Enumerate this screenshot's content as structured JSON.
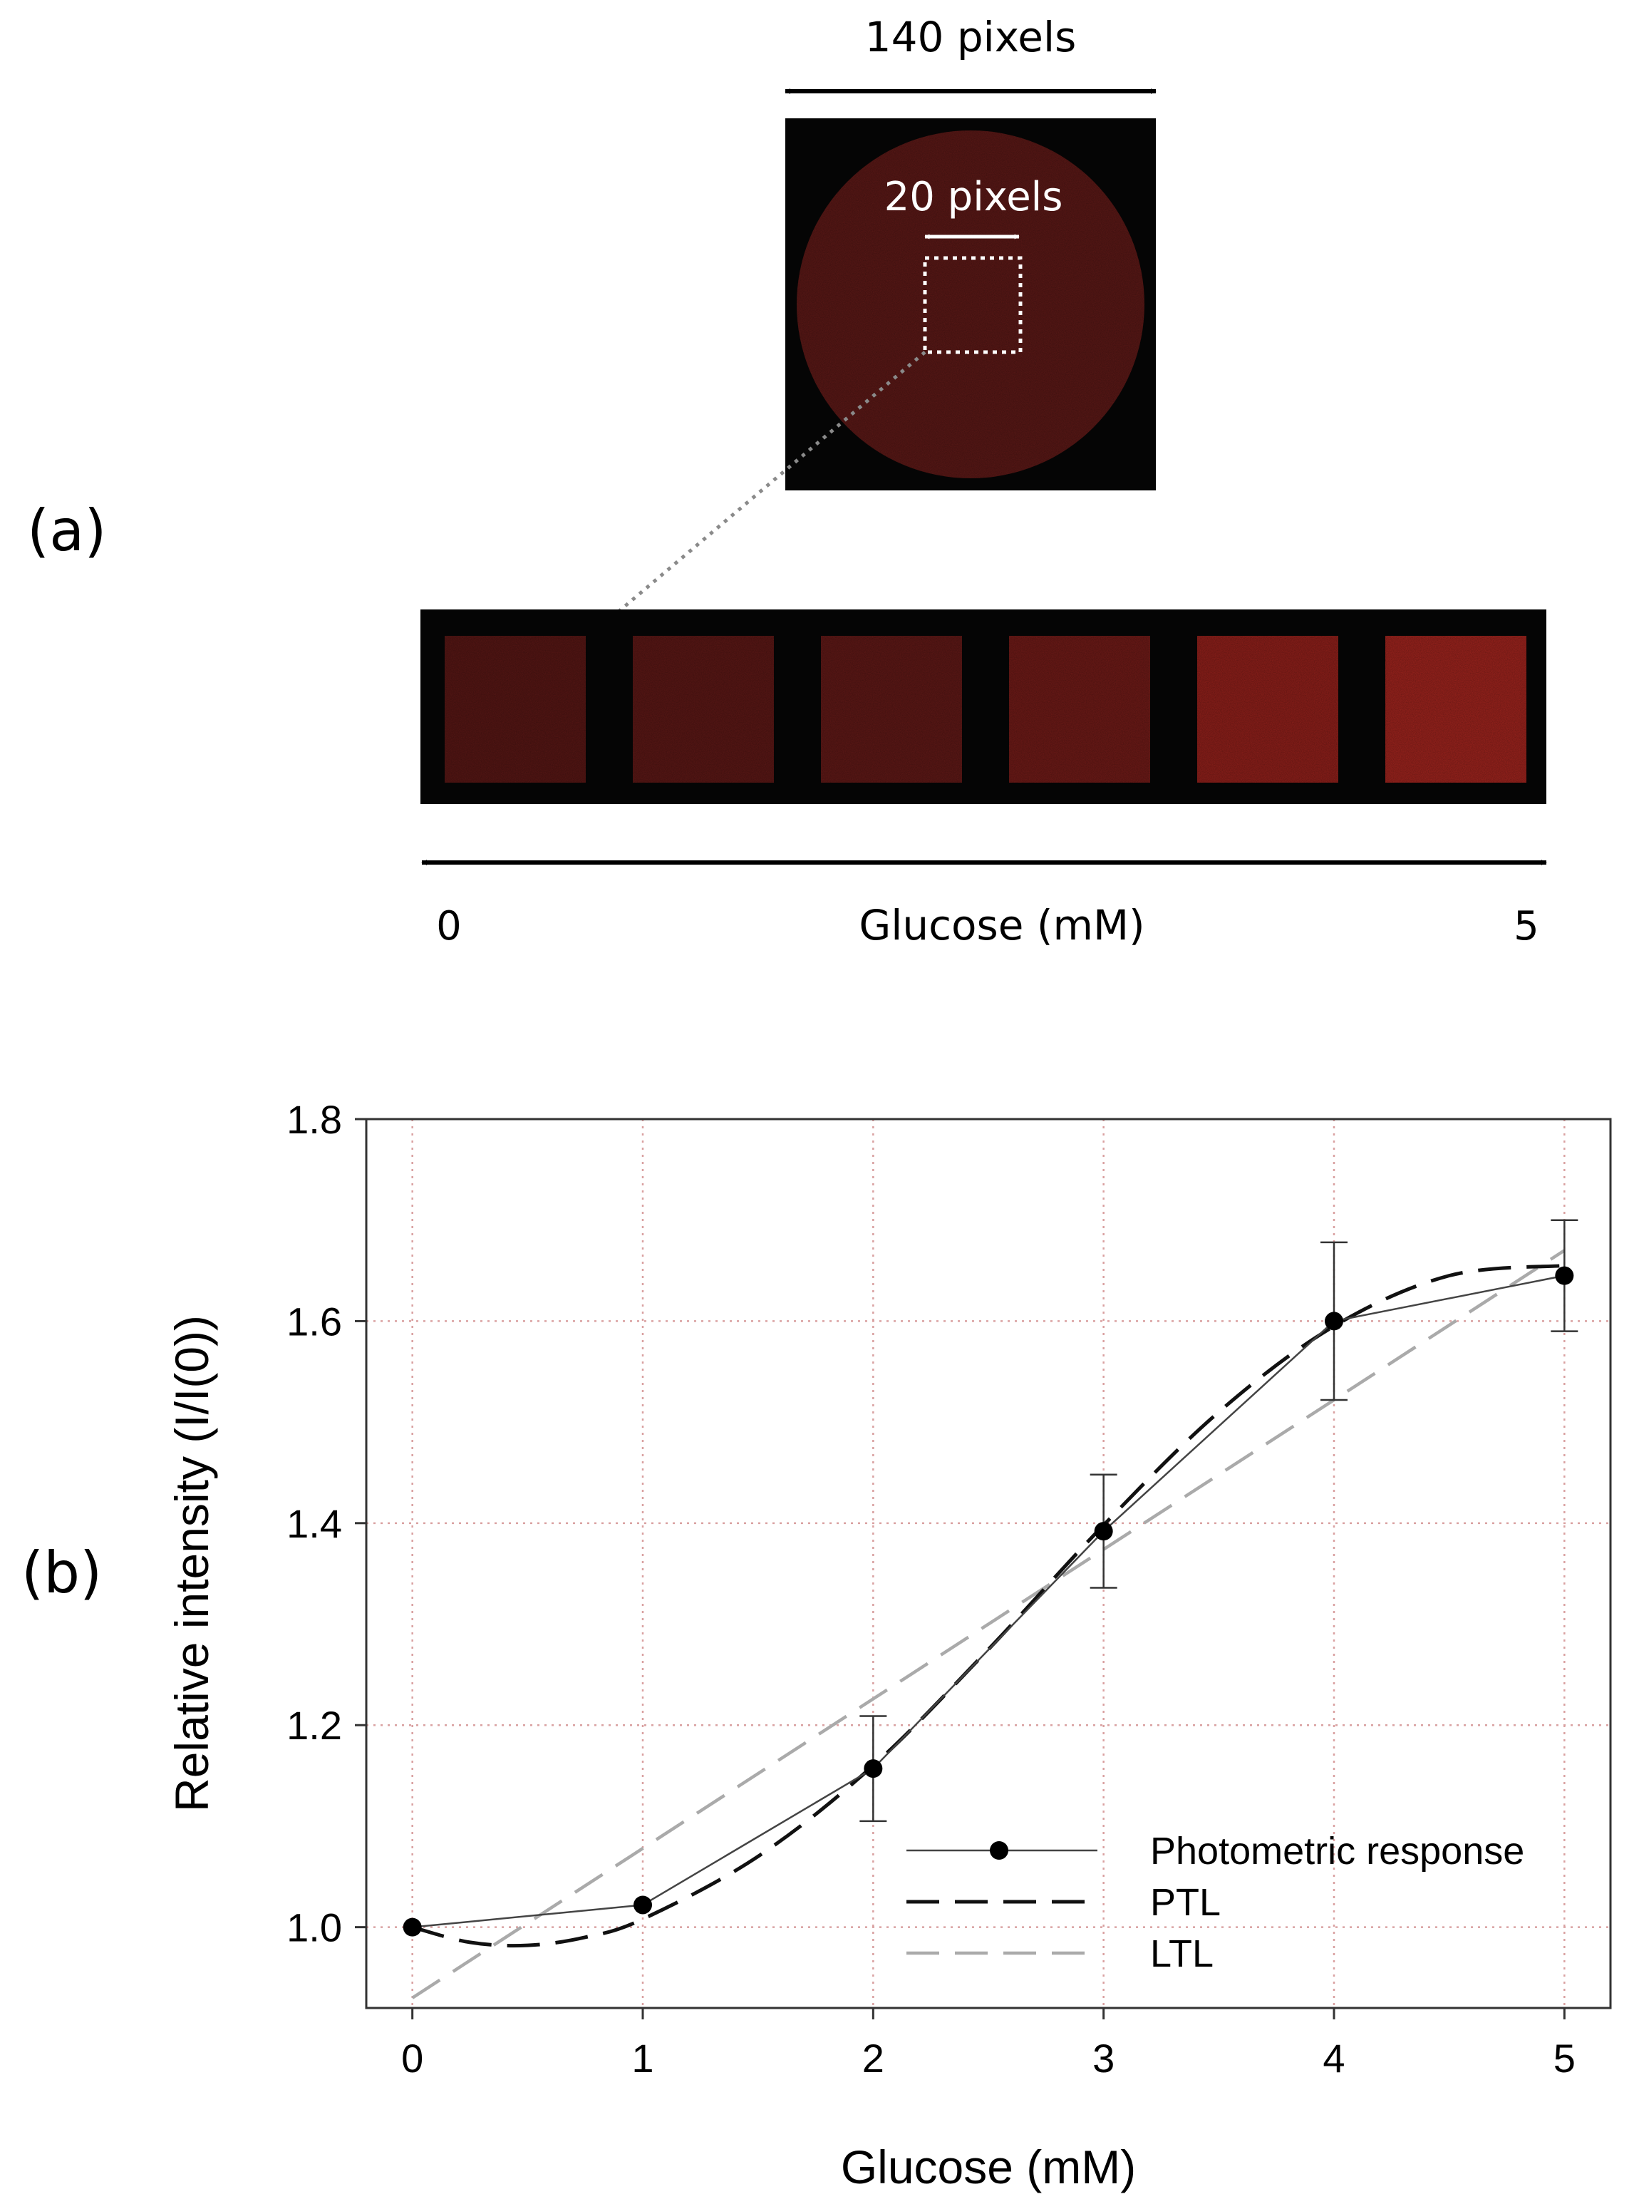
{
  "panel_a": {
    "label": "(a)",
    "top_dimension_label": "140 pixels",
    "inner_dimension_label": "20 pixels",
    "axis_start": "0",
    "axis_end": "5",
    "axis_title": "Glucose (mM)",
    "sample_count": 6,
    "colors": {
      "background": "#050505",
      "swatches": [
        "#561614",
        "#5a1715",
        "#5e1816",
        "#6e1a17",
        "#8e1f1a",
        "#9c231d"
      ],
      "circle": "#5a1816"
    }
  },
  "panel_b": {
    "label": "(b)"
  },
  "chart_data": {
    "type": "line",
    "title": "",
    "xlabel": "Glucose (mM)",
    "ylabel": "Relative intensity (I/I(0))",
    "xlim": [
      -0.2,
      5.2
    ],
    "ylim": [
      0.92,
      1.8
    ],
    "x_ticks": [
      "0",
      "1",
      "2",
      "3",
      "4",
      "5"
    ],
    "y_ticks": [
      "1.0",
      "1.2",
      "1.4",
      "1.6",
      "1.8"
    ],
    "grid": true,
    "legend_position": "bottom-right",
    "series": [
      {
        "name": "Photometric response",
        "style": "solid-with-markers",
        "color": "#000000",
        "x": [
          0,
          1,
          2,
          3,
          4,
          5
        ],
        "y": [
          1.0,
          1.022,
          1.157,
          1.392,
          1.6,
          1.645
        ],
        "error": [
          0,
          0,
          0.052,
          0.056,
          0.078,
          0.055
        ]
      },
      {
        "name": "PTL",
        "style": "dashed",
        "color": "#111111",
        "x": [
          0,
          0.25,
          0.5,
          0.75,
          1,
          1.5,
          2,
          2.5,
          3,
          3.5,
          4,
          4.5,
          5
        ],
        "y": [
          1.0,
          0.985,
          0.982,
          0.99,
          1.008,
          1.07,
          1.16,
          1.275,
          1.398,
          1.51,
          1.595,
          1.645,
          1.655
        ]
      },
      {
        "name": "LTL",
        "style": "dashed",
        "color": "#aaaaaa",
        "x": [
          0,
          5
        ],
        "y": [
          0.93,
          1.67
        ]
      }
    ]
  }
}
